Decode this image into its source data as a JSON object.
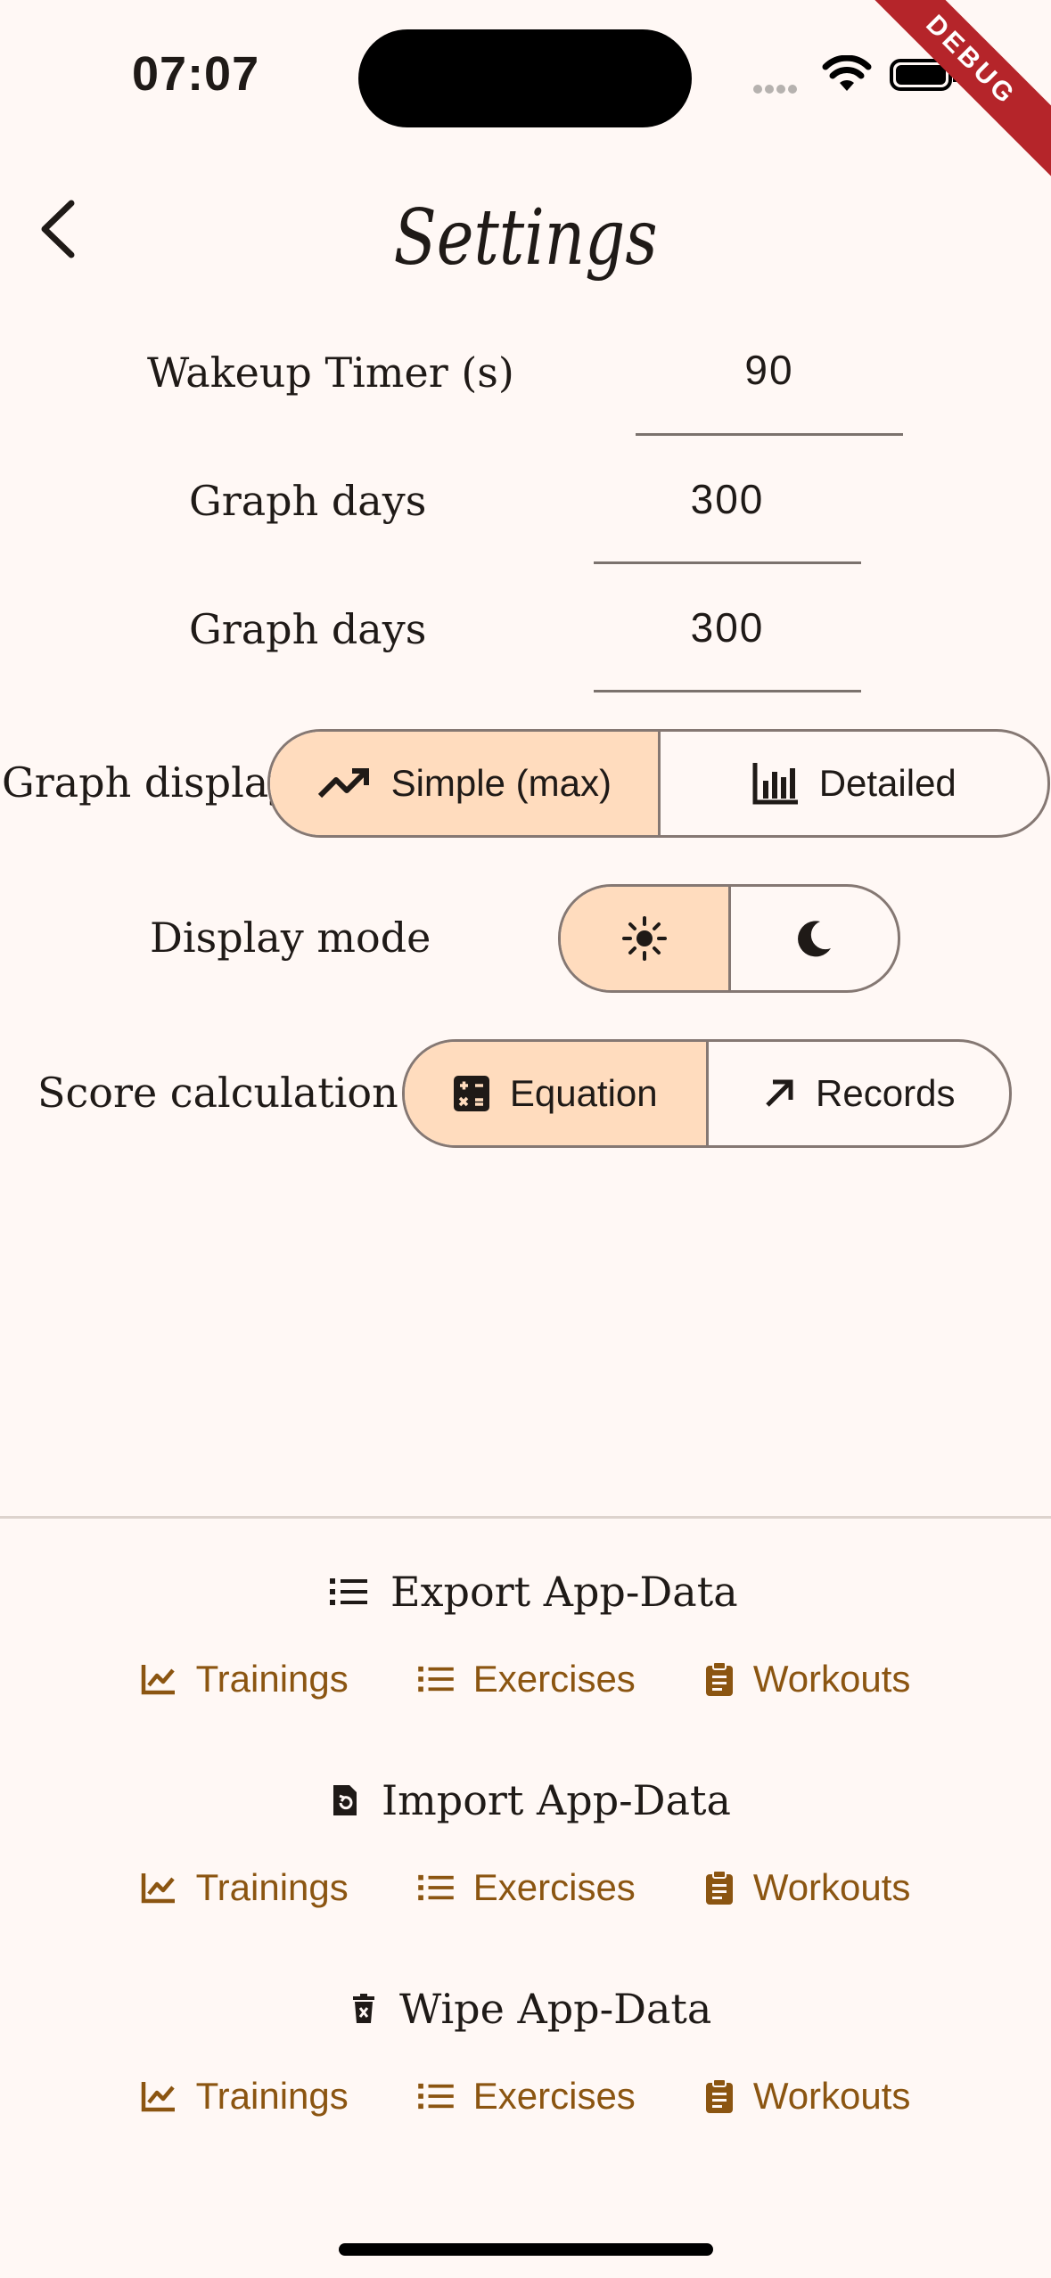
{
  "status_bar": {
    "time": "07:07"
  },
  "debug_banner": "DEBUG",
  "header": {
    "title": "Settings"
  },
  "settings": {
    "wakeup_timer": {
      "label": "Wakeup Timer (s)",
      "value": "90"
    },
    "graph_days_1": {
      "label": "Graph days",
      "value": "300"
    },
    "graph_days_2": {
      "label": "Graph days",
      "value": "300"
    },
    "graph_display": {
      "label": "Graph display",
      "options": [
        "Simple (max)",
        "Detailed"
      ],
      "selected": "Simple (max)"
    },
    "display_mode": {
      "label": "Display mode",
      "options": [
        "sun-icon",
        "moon-icon"
      ],
      "selected": "light"
    },
    "score_calculation": {
      "label": "Score calculation",
      "options": [
        "Equation",
        "Records"
      ],
      "selected": "Equation"
    }
  },
  "data_sections": {
    "export": {
      "title": "Export App-Data",
      "buttons": [
        "Trainings",
        "Exercises",
        "Workouts"
      ]
    },
    "import": {
      "title": "Import App-Data",
      "buttons": [
        "Trainings",
        "Exercises",
        "Workouts"
      ]
    },
    "wipe": {
      "title": "Wipe App-Data",
      "buttons": [
        "Trainings",
        "Exercises",
        "Workouts"
      ]
    }
  },
  "colors": {
    "background": "#fff8f5",
    "selected_segment": "#ffdcbe",
    "accent": "#8b5511",
    "debug_banner": "#b5252a"
  }
}
